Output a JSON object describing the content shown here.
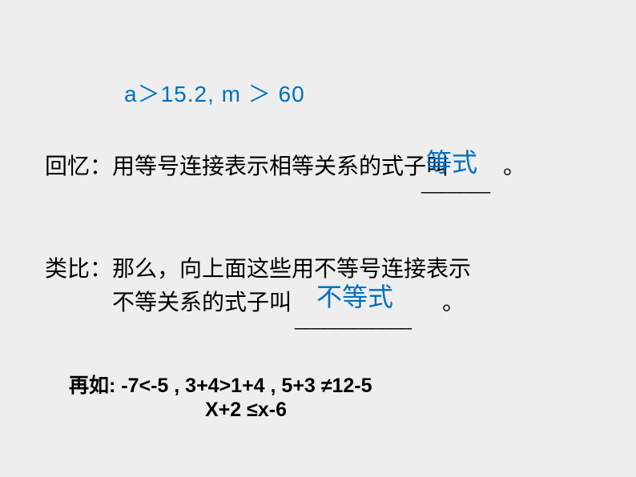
{
  "formula_top": "a＞15.2, m ＞ 60",
  "recall": {
    "prefix": "回忆：用等号连接表示相等关系的式子叫",
    "blank_value": "等式",
    "underline": "_______",
    "period": "。"
  },
  "analogy": {
    "line1": "类比：那么，向上面这些用不等号连接表示",
    "line2_prefix": "不等关系的式子叫",
    "blank_value": "不等式",
    "underline": "____________",
    "period": "。"
  },
  "example": {
    "line1": "再如:   -7<-5  ,  3+4>1+4 , 5+3 ≠12-5",
    "line2": "X+2 ≤x-6"
  },
  "colors": {
    "background": "#eeeeee",
    "blue": "#0070c0",
    "text": "#000000"
  }
}
